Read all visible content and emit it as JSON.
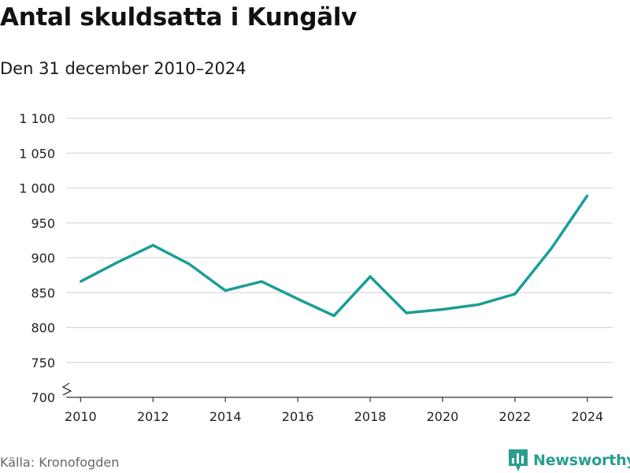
{
  "header": {
    "title": "Antal skuldsatta i Kungälv",
    "subtitle": "Den 31 december 2010–2024"
  },
  "footer": {
    "source": "Källa: Kronofogden",
    "brand": "Newsworthy"
  },
  "colors": {
    "line": "#1a9e96",
    "grid": "#d9d9d9",
    "axis": "#333333",
    "brand": "#2a9d8f"
  },
  "chart_data": {
    "type": "line",
    "title": "Antal skuldsatta i Kungälv",
    "subtitle": "Den 31 december 2010–2024",
    "x": [
      2010,
      2011,
      2012,
      2013,
      2014,
      2015,
      2016,
      2017,
      2018,
      2019,
      2020,
      2021,
      2022,
      2023,
      2024
    ],
    "series": [
      {
        "values": [
          866,
          893,
          918,
          891,
          853,
          866,
          841,
          817,
          873,
          821,
          826,
          833,
          848,
          913,
          989
        ]
      }
    ],
    "xlim": [
      2009.6,
      2024.7
    ],
    "ylim": [
      700,
      1100
    ],
    "y_ticks": [
      700,
      750,
      800,
      850,
      900,
      950,
      1000,
      1050,
      1100
    ],
    "y_tick_labels": [
      "700",
      "750",
      "800",
      "850",
      "900",
      "950",
      "1 000",
      "1 050",
      "1 100"
    ],
    "x_ticks": [
      2010,
      2012,
      2014,
      2016,
      2018,
      2020,
      2022,
      2024
    ],
    "x_tick_labels": [
      "2010",
      "2012",
      "2014",
      "2016",
      "2018",
      "2020",
      "2022",
      "2024"
    ],
    "y_axis_break": true,
    "grid": true,
    "legend": "none"
  }
}
